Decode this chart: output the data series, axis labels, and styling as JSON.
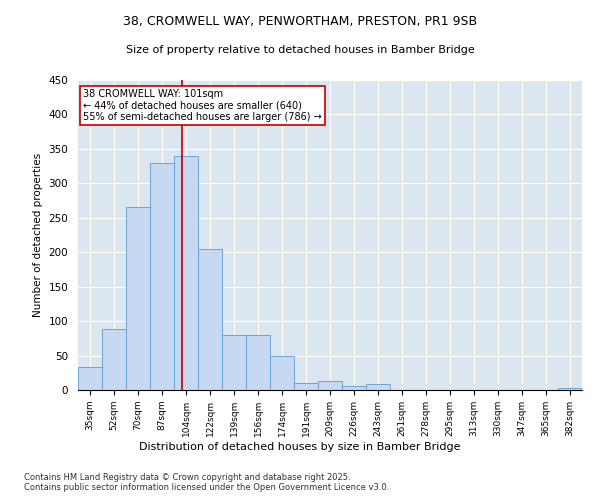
{
  "title1": "38, CROMWELL WAY, PENWORTHAM, PRESTON, PR1 9SB",
  "title2": "Size of property relative to detached houses in Bamber Bridge",
  "xlabel": "Distribution of detached houses by size in Bamber Bridge",
  "ylabel": "Number of detached properties",
  "categories": [
    "35sqm",
    "52sqm",
    "70sqm",
    "87sqm",
    "104sqm",
    "122sqm",
    "139sqm",
    "156sqm",
    "174sqm",
    "191sqm",
    "209sqm",
    "226sqm",
    "243sqm",
    "261sqm",
    "278sqm",
    "295sqm",
    "313sqm",
    "330sqm",
    "347sqm",
    "365sqm",
    "382sqm"
  ],
  "values": [
    33,
    88,
    265,
    330,
    340,
    205,
    80,
    80,
    50,
    10,
    13,
    6,
    8,
    0,
    0,
    0,
    0,
    0,
    0,
    0,
    3
  ],
  "bar_color": "#c6d9f0",
  "bar_edge_color": "#5b9bd5",
  "vline_x": 3.85,
  "vline_color": "#c00000",
  "annotation_line1": "38 CROMWELL WAY: 101sqm",
  "annotation_line2": "← 44% of detached houses are smaller (640)",
  "annotation_line3": "55% of semi-detached houses are larger (786) →",
  "annotation_box_color": "#ffffff",
  "annotation_box_edge": "#c00000",
  "ylim": [
    0,
    450
  ],
  "yticks": [
    0,
    50,
    100,
    150,
    200,
    250,
    300,
    350,
    400,
    450
  ],
  "footer": "Contains HM Land Registry data © Crown copyright and database right 2025.\nContains public sector information licensed under the Open Government Licence v3.0.",
  "bg_color": "#dce6f1",
  "fig_bg_color": "#ffffff"
}
